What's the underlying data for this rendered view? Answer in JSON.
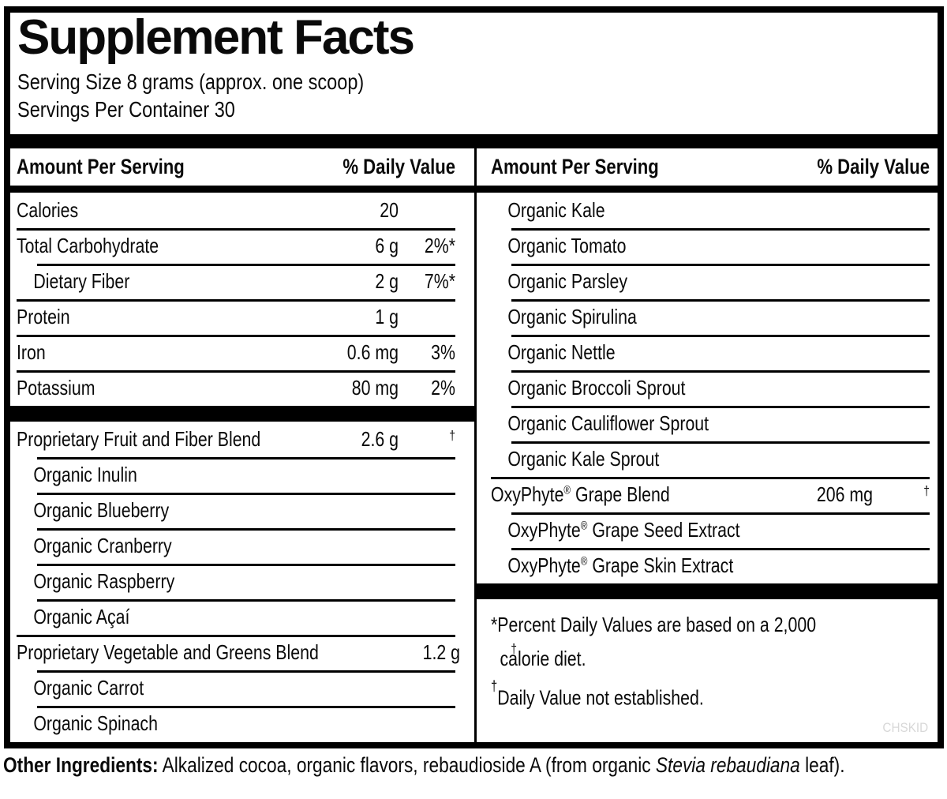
{
  "title": "Supplement Facts",
  "serving": {
    "size_line": "Serving Size 8 grams (approx. one scoop)",
    "servings_line": "Servings Per Container 30"
  },
  "columns": {
    "header": {
      "amount": "Amount Per Serving",
      "dv": "% Daily Value"
    },
    "left_rows": [
      {
        "name": "Calories",
        "amount": "20",
        "dv": ""
      },
      {
        "name": "Total Carbohydrate",
        "amount": "6 g",
        "dv": "2%*"
      },
      {
        "name": "Dietary Fiber",
        "amount": "2 g",
        "dv": "7%*",
        "indent": true
      },
      {
        "name": "Protein",
        "amount": "1 g",
        "dv": ""
      },
      {
        "name": "Iron",
        "amount": "0.6 mg",
        "dv": "3%"
      },
      {
        "name": "Potassium",
        "amount": "80 mg",
        "dv": "2%"
      },
      {
        "type": "bar"
      },
      {
        "name": "Proprietary Fruit and Fiber Blend",
        "amount": "2.6 g",
        "dv": "†"
      },
      {
        "name": "Organic Inulin",
        "indent": true
      },
      {
        "name": "Organic Blueberry",
        "indent": true
      },
      {
        "name": "Organic Cranberry",
        "indent": true
      },
      {
        "name": "Organic Raspberry",
        "indent": true
      },
      {
        "name": "Organic Açaí",
        "indent": true
      },
      {
        "name": "Proprietary Vegetable and Greens Blend",
        "amount": "1.2 g",
        "dv": "†"
      },
      {
        "name": "Organic Carrot",
        "indent": true
      },
      {
        "name": "Organic Spinach",
        "indent": true
      }
    ],
    "right_rows": [
      {
        "name": "Organic Kale",
        "indent": true
      },
      {
        "name": "Organic Tomato",
        "indent": true
      },
      {
        "name": "Organic Parsley",
        "indent": true
      },
      {
        "name": "Organic Spirulina",
        "indent": true
      },
      {
        "name": "Organic Nettle",
        "indent": true
      },
      {
        "name": "Organic Broccoli Sprout",
        "indent": true
      },
      {
        "name": "Organic Cauliflower Sprout",
        "indent": true
      },
      {
        "name": "Organic Kale Sprout",
        "indent": true
      },
      {
        "name": "OxyPhyte® Grape Blend",
        "amount": "206 mg",
        "dv": "†"
      },
      {
        "name": "OxyPhyte® Grape Seed Extract",
        "indent": true
      },
      {
        "name": "OxyPhyte® Grape Skin Extract",
        "indent": true
      },
      {
        "type": "bar"
      }
    ]
  },
  "footnotes": {
    "percent": "*Percent Daily Values are based on a 2,000 calorie diet.",
    "dagger_symbol": "†",
    "dagger_text": "Daily Value not established."
  },
  "watermark": "CHSKID",
  "other_ingredients": {
    "label": "Other Ingredients:",
    "before_italic": " Alkalized cocoa, organic flavors, rebaudioside A (from organic ",
    "italic": "Stevia rebaudiana",
    "after_italic": " leaf)."
  },
  "colors": {
    "ink": "#000000",
    "background": "#ffffff",
    "watermark_gray": "#d8d8d8"
  }
}
